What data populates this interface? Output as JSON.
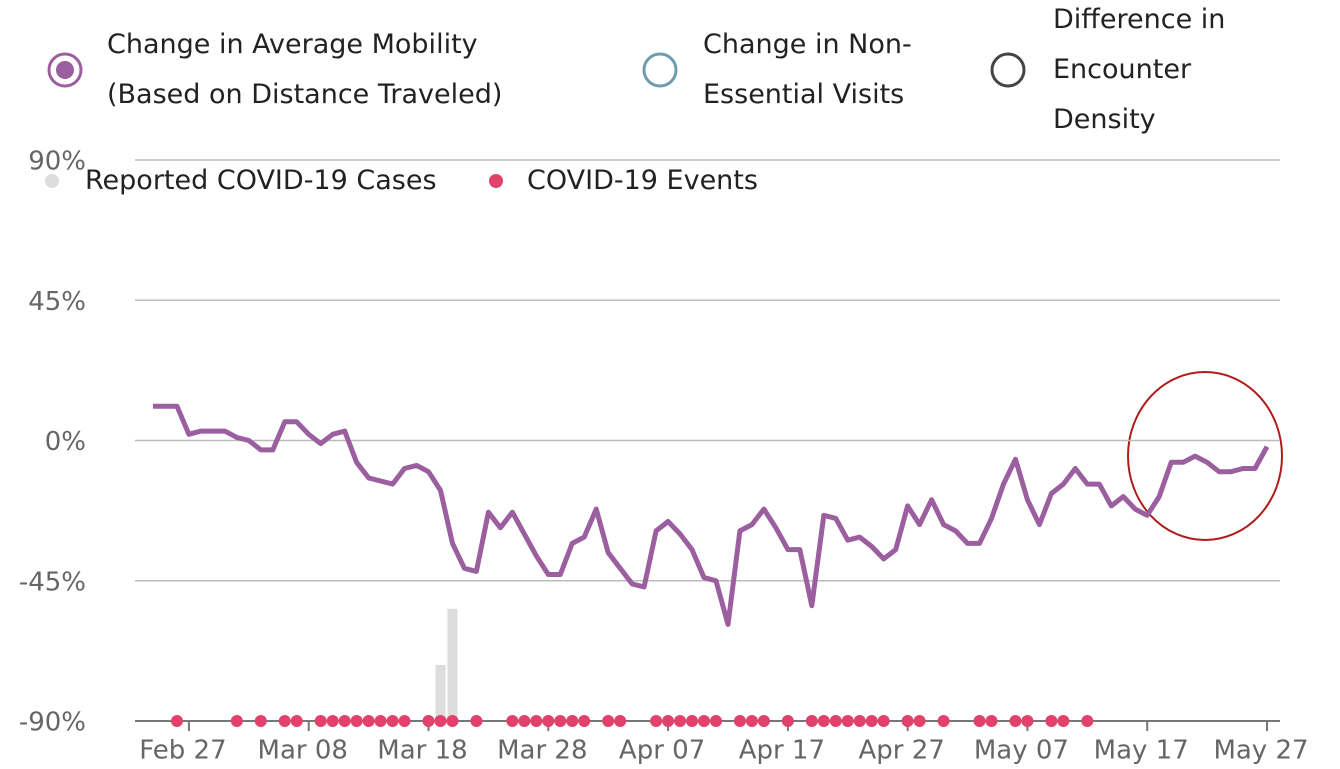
{
  "chart_data": {
    "type": "line",
    "categories": [
      null,
      null,
      null,
      "Feb 27",
      null,
      null,
      null,
      null,
      null,
      null,
      null,
      null,
      null,
      "Mar 08",
      null,
      null,
      null,
      null,
      null,
      null,
      null,
      null,
      null,
      "Mar 18",
      null,
      null,
      null,
      null,
      null,
      null,
      null,
      null,
      null,
      "Mar 28",
      null,
      null,
      null,
      null,
      null,
      null,
      null,
      null,
      null,
      "Apr 07",
      null,
      null,
      null,
      null,
      null,
      null,
      null,
      null,
      null,
      "Apr 17",
      null,
      null,
      null,
      null,
      null,
      null,
      null,
      null,
      null,
      "Apr 27",
      null,
      null,
      null,
      null,
      null,
      null,
      null,
      null,
      null,
      "May 07",
      null,
      null,
      null,
      null,
      null,
      null,
      null,
      null,
      null,
      "May 17",
      null,
      null,
      null,
      null,
      null,
      null,
      null,
      null,
      null,
      "May 27"
    ],
    "series": [
      {
        "name": "Change in Average Mobility (Based on Distance Traveled)",
        "color": "#9b5f9f",
        "values": [
          11,
          11,
          11,
          2,
          3,
          3,
          3,
          1,
          0,
          -3,
          -3,
          6,
          6,
          2,
          -1,
          2,
          3,
          -7,
          -12,
          -13,
          -14,
          -9,
          -8,
          -10,
          -16,
          -33,
          -41,
          -42,
          -23,
          -28,
          -23,
          -30,
          -37,
          -43,
          -43,
          -33,
          -31,
          -22,
          -36,
          -41,
          -46,
          -47,
          -29,
          -26,
          -30,
          -35,
          -44,
          -45,
          -59,
          -29,
          -27,
          -22,
          -28,
          -35,
          -35,
          -53,
          -24,
          -25,
          -32,
          -31,
          -34,
          -38,
          -35,
          -21,
          -27,
          -19,
          -27,
          -29,
          -33,
          -33,
          -25,
          -14,
          -6,
          -19,
          -27,
          -17,
          -14,
          -9,
          -14,
          -14,
          -21,
          -18,
          -22,
          -24,
          -18,
          -7,
          -7,
          -5,
          -7,
          -10,
          -10,
          -9,
          -9,
          -2
        ]
      },
      {
        "name": "Change in Non-Essential Visits",
        "color": "#6f9bb0"
      },
      {
        "name": "Difference in Encounter Density",
        "color": "#444444"
      },
      {
        "name": "Reported COVID-19 Cases",
        "color": "#dddddd",
        "type": "bar",
        "values": [
          null,
          null,
          null,
          null,
          null,
          null,
          null,
          null,
          null,
          null,
          null,
          null,
          null,
          null,
          null,
          null,
          null,
          null,
          null,
          null,
          null,
          null,
          null,
          null,
          -72,
          -54,
          null,
          null,
          null,
          null,
          null,
          null,
          null,
          null,
          null,
          null,
          null,
          null,
          null,
          null,
          null,
          null,
          null,
          null,
          null,
          null,
          null,
          null,
          null,
          null,
          null,
          null,
          null,
          null,
          null,
          null,
          null,
          null,
          null,
          null,
          null,
          null,
          null,
          null,
          null,
          null,
          null,
          null,
          null,
          null,
          null,
          null,
          null,
          null,
          null,
          null,
          null,
          null,
          null,
          null,
          null,
          null,
          null,
          null,
          null,
          null,
          null,
          null,
          null,
          null,
          null,
          null,
          null,
          null
        ]
      },
      {
        "name": "COVID-19 Events",
        "color": "#e0426b",
        "type": "scatter",
        "values": [
          null,
          null,
          -90,
          null,
          null,
          null,
          null,
          -90,
          null,
          -90,
          null,
          -90,
          -90,
          null,
          -90,
          -90,
          -90,
          -90,
          -90,
          -90,
          -90,
          -90,
          null,
          -90,
          -90,
          -90,
          null,
          -90,
          null,
          null,
          -90,
          -90,
          -90,
          -90,
          -90,
          -90,
          -90,
          null,
          -90,
          -90,
          null,
          null,
          -90,
          -90,
          -90,
          -90,
          -90,
          -90,
          null,
          -90,
          -90,
          -90,
          null,
          -90,
          null,
          -90,
          -90,
          -90,
          -90,
          -90,
          -90,
          -90,
          null,
          -90,
          -90,
          null,
          -90,
          null,
          null,
          -90,
          -90,
          null,
          -90,
          -90,
          null,
          -90,
          -90,
          null,
          -90,
          null,
          null,
          null,
          null,
          null,
          null,
          null,
          null,
          null,
          null,
          null,
          null,
          null,
          null,
          null
        ]
      }
    ],
    "ylim": [
      -90,
      90
    ],
    "yticks": [
      {
        "value": -90,
        "label": "-90%"
      },
      {
        "value": -45,
        "label": "-45%"
      },
      {
        "value": 0,
        "label": "0%"
      },
      {
        "value": 45,
        "label": "45%"
      },
      {
        "value": 90,
        "label": "90%"
      }
    ],
    "grid": true
  }
}
